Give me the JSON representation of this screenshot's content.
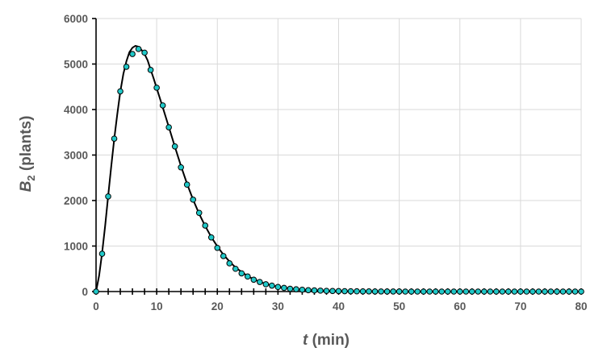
{
  "chart_data": {
    "type": "scatter",
    "title": "",
    "xlabel": {
      "var": "t",
      "unit": " (min)"
    },
    "ylabel": {
      "var": "B",
      "sub": "2",
      "unit": "  (plants)"
    },
    "xlim": [
      0,
      80
    ],
    "ylim": [
      0,
      6000
    ],
    "xticks": [
      0,
      10,
      20,
      30,
      40,
      50,
      60,
      70,
      80
    ],
    "yticks": [
      0,
      1000,
      2000,
      3000,
      4000,
      5000,
      6000
    ],
    "x_minor_step": 2,
    "grid": true,
    "colors": {
      "points": "#1fc8c8",
      "line": "#000000",
      "grid": "#d9d9d9",
      "text": "#595959"
    },
    "series": [
      {
        "kind": "points",
        "x": [
          0,
          1,
          2,
          3,
          4,
          5,
          6,
          7,
          8,
          9,
          10,
          11,
          12,
          13,
          14,
          15,
          16,
          17,
          18,
          19,
          20,
          21,
          22,
          23,
          24,
          25,
          26,
          27,
          28,
          29,
          30,
          31,
          32,
          33,
          34,
          35,
          36,
          37,
          38,
          39,
          40,
          41,
          42,
          43,
          44,
          45,
          46,
          47,
          48,
          49,
          50,
          51,
          52,
          53,
          54,
          55,
          56,
          57,
          58,
          59,
          60,
          61,
          62,
          63,
          64,
          65,
          66,
          67,
          68,
          69,
          70,
          71,
          72,
          73,
          74,
          75,
          76,
          77,
          78,
          79,
          80
        ],
        "y": [
          0,
          830,
          2090,
          3360,
          4400,
          4940,
          5220,
          5330,
          5250,
          4870,
          4480,
          4090,
          3610,
          3190,
          2730,
          2350,
          2020,
          1730,
          1450,
          1190,
          960,
          780,
          620,
          500,
          400,
          330,
          260,
          210,
          160,
          130,
          100,
          80,
          60,
          50,
          40,
          30,
          25,
          20,
          15,
          12,
          10,
          8,
          6,
          5,
          4,
          3,
          2,
          2,
          1,
          1,
          1,
          0,
          0,
          0,
          0,
          0,
          0,
          0,
          0,
          0,
          0,
          0,
          0,
          0,
          0,
          0,
          0,
          0,
          0,
          0,
          0,
          0,
          0,
          0,
          0,
          0,
          0,
          0,
          0,
          0,
          0
        ]
      },
      {
        "kind": "line",
        "x": [
          0,
          0.5,
          1,
          1.5,
          2,
          2.5,
          3,
          3.5,
          4,
          4.5,
          5,
          5.5,
          6,
          6.5,
          7,
          7.5,
          8,
          8.5,
          9,
          9.5,
          10,
          11,
          12,
          13,
          14,
          15,
          16,
          17,
          18,
          19,
          20,
          21,
          22,
          23,
          24,
          25,
          26,
          27,
          28,
          29,
          30,
          32,
          34,
          36,
          38,
          40,
          42,
          45,
          50,
          55,
          60,
          70,
          80
        ],
        "y": [
          0,
          350,
          850,
          1450,
          2100,
          2750,
          3350,
          3900,
          4400,
          4780,
          5060,
          5260,
          5360,
          5400,
          5380,
          5310,
          5220,
          5080,
          4880,
          4680,
          4470,
          4050,
          3620,
          3180,
          2760,
          2370,
          2020,
          1710,
          1440,
          1200,
          990,
          810,
          660,
          530,
          430,
          340,
          270,
          215,
          170,
          135,
          105,
          65,
          40,
          25,
          15,
          10,
          6,
          3,
          1,
          0,
          0,
          0,
          0
        ]
      }
    ]
  }
}
